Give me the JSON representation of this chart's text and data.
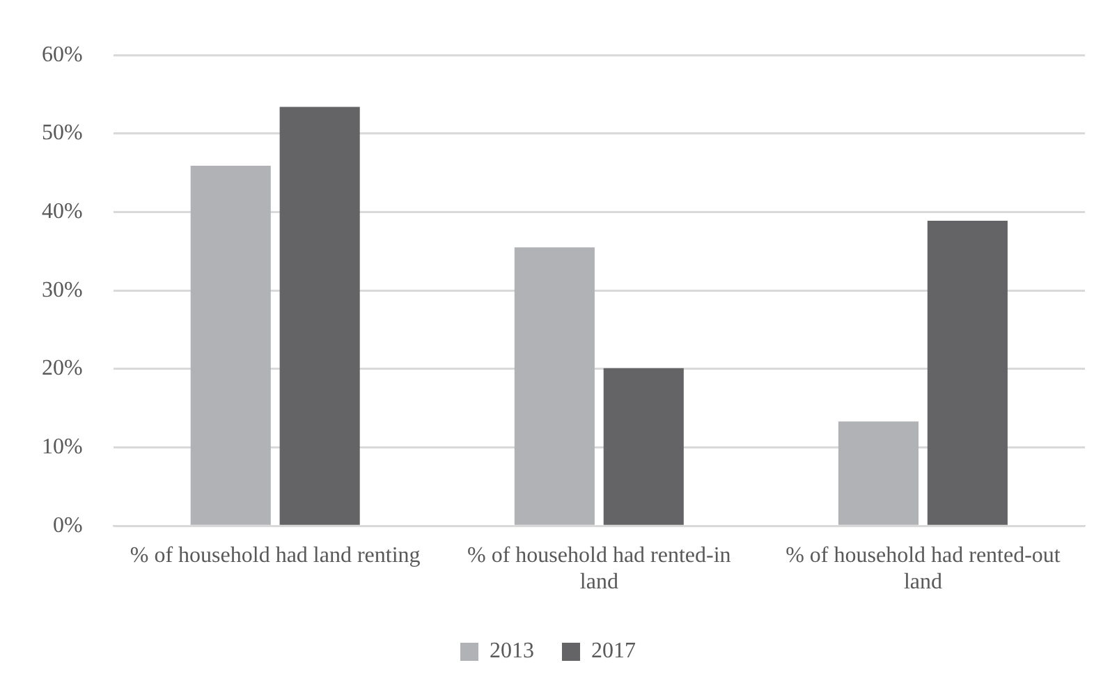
{
  "chart_data": {
    "type": "bar",
    "categories": [
      "% of household had land renting",
      "% of household had rented-in land",
      "% of household had rented-out land"
    ],
    "series": [
      {
        "name": "2013",
        "color": "#b1b2b5",
        "values": [
          45.9,
          35.5,
          13.3
        ]
      },
      {
        "name": "2017",
        "color": "#646466",
        "values": [
          53.4,
          20.1,
          38.9
        ]
      }
    ],
    "ylim": [
      0,
      60
    ],
    "yticks": [
      {
        "value": 0,
        "label": "0%"
      },
      {
        "value": 10,
        "label": "10%"
      },
      {
        "value": 20,
        "label": "20%"
      },
      {
        "value": 30,
        "label": "30%"
      },
      {
        "value": 40,
        "label": "40%"
      },
      {
        "value": 50,
        "label": "50%"
      },
      {
        "value": 60,
        "label": "60%"
      }
    ],
    "grid": "y",
    "legend": "bottom"
  }
}
